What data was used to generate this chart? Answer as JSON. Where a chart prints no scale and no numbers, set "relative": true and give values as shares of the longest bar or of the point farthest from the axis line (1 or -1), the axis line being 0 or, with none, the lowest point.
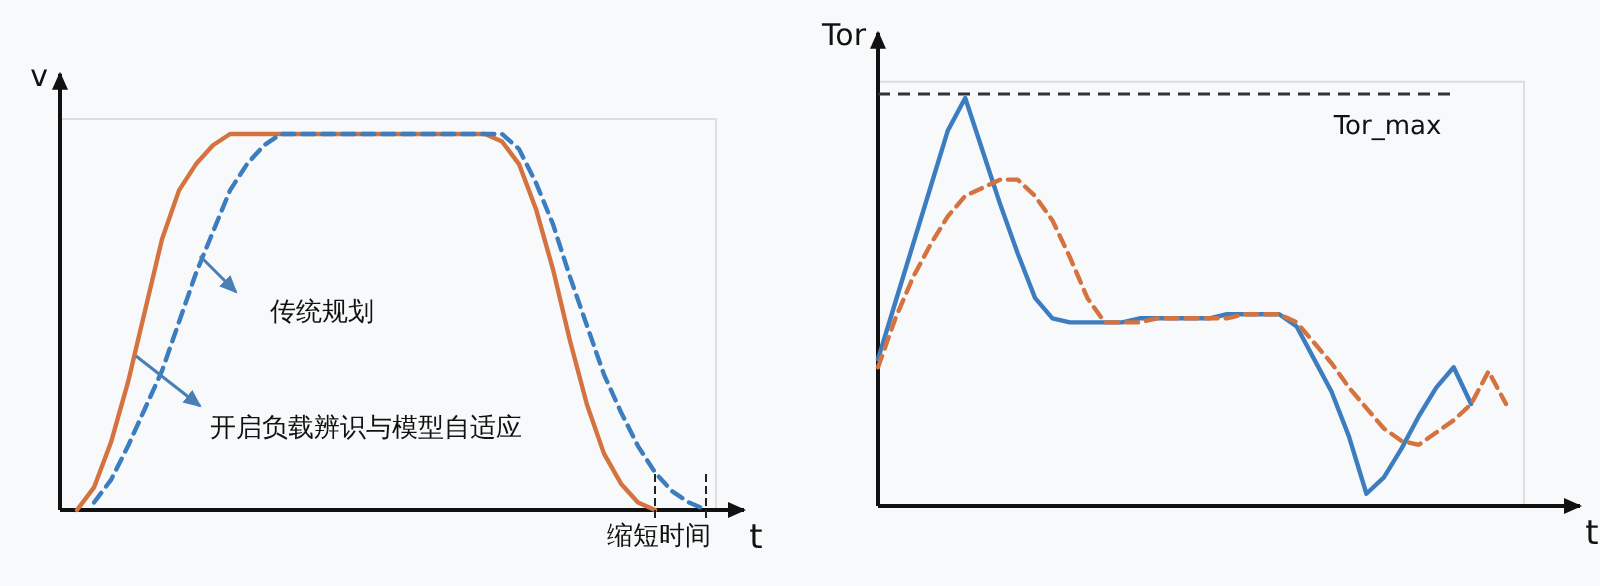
{
  "chart_data": [
    {
      "type": "line",
      "relative": true,
      "xlabel": "t",
      "ylabel": "v",
      "categories": [
        null,
        null,
        null,
        null,
        null,
        null,
        null,
        null,
        null,
        null,
        null,
        null,
        null,
        null,
        null,
        null,
        null,
        null,
        null,
        null,
        null,
        null,
        null,
        null,
        null,
        null,
        null,
        null,
        null,
        null,
        null,
        null,
        null,
        null,
        null,
        null,
        null,
        null,
        null,
        null,
        null
      ],
      "series": [
        {
          "color": "#d4733f",
          "line_style": "solid",
          "values": [
            null,
            0,
            0.06,
            0.18,
            0.34,
            0.53,
            0.72,
            0.85,
            0.92,
            0.97,
            1,
            1,
            1,
            1,
            1,
            1,
            1,
            1,
            1,
            1,
            1,
            1,
            1,
            1,
            1,
            1,
            0.98,
            0.92,
            0.8,
            0.64,
            0.45,
            0.28,
            0.15,
            0.07,
            0.02,
            0,
            null,
            null,
            null,
            null,
            null
          ]
        },
        {
          "color": "#3c7dbf",
          "line_style": "dashed",
          "values": [
            null,
            null,
            0.02,
            0.08,
            0.17,
            0.27,
            0.37,
            0.5,
            0.63,
            0.74,
            0.85,
            0.92,
            0.97,
            1,
            1,
            1,
            1,
            1,
            1,
            1,
            1,
            1,
            1,
            1,
            1,
            1,
            1,
            0.96,
            0.87,
            0.76,
            0.62,
            0.49,
            0.36,
            0.26,
            0.17,
            0.1,
            0.05,
            0.02,
            0,
            null,
            null
          ]
        }
      ],
      "annotations": [
        "传统规划",
        "开启负载辨识与模型自适应",
        "缩短时间"
      ]
    },
    {
      "type": "line",
      "relative": true,
      "xlabel": "t",
      "ylabel": "Tor",
      "categories": [
        null,
        null,
        null,
        null,
        null,
        null,
        null,
        null,
        null,
        null,
        null,
        null,
        null,
        null,
        null,
        null,
        null,
        null,
        null,
        null,
        null,
        null,
        null,
        null,
        null,
        null,
        null,
        null,
        null,
        null,
        null,
        null,
        null,
        null,
        null,
        null,
        null
      ],
      "series": [
        {
          "color": "#3c7dbf",
          "line_style": "solid",
          "values": [
            0.36,
            0.5,
            0.64,
            0.78,
            0.92,
            1,
            0.87,
            0.74,
            0.62,
            0.51,
            0.46,
            0.45,
            0.45,
            0.45,
            0.45,
            0.46,
            0.46,
            0.46,
            0.46,
            0.46,
            0.47,
            0.47,
            0.47,
            0.47,
            0.44,
            0.36,
            0.28,
            0.17,
            0.03,
            0.07,
            0.14,
            0.22,
            0.29,
            0.34,
            0.25,
            null,
            null
          ]
        },
        {
          "color": "#d4733f",
          "line_style": "dashed",
          "values": [
            0.34,
            0.46,
            0.56,
            0.64,
            0.71,
            0.76,
            0.78,
            0.8,
            0.8,
            0.76,
            0.7,
            0.61,
            0.51,
            0.45,
            0.45,
            0.45,
            0.46,
            0.46,
            0.46,
            0.46,
            0.46,
            0.47,
            0.47,
            0.47,
            0.45,
            0.4,
            0.35,
            0.29,
            0.24,
            0.19,
            0.16,
            0.15,
            0.18,
            0.21,
            0.25,
            0.33,
            0.25
          ]
        }
      ],
      "ref_lines": [
        {
          "axis": "y",
          "value": 1.01,
          "label": "Tor_max",
          "color": "#333333",
          "line_style": "dashed"
        }
      ]
    }
  ]
}
